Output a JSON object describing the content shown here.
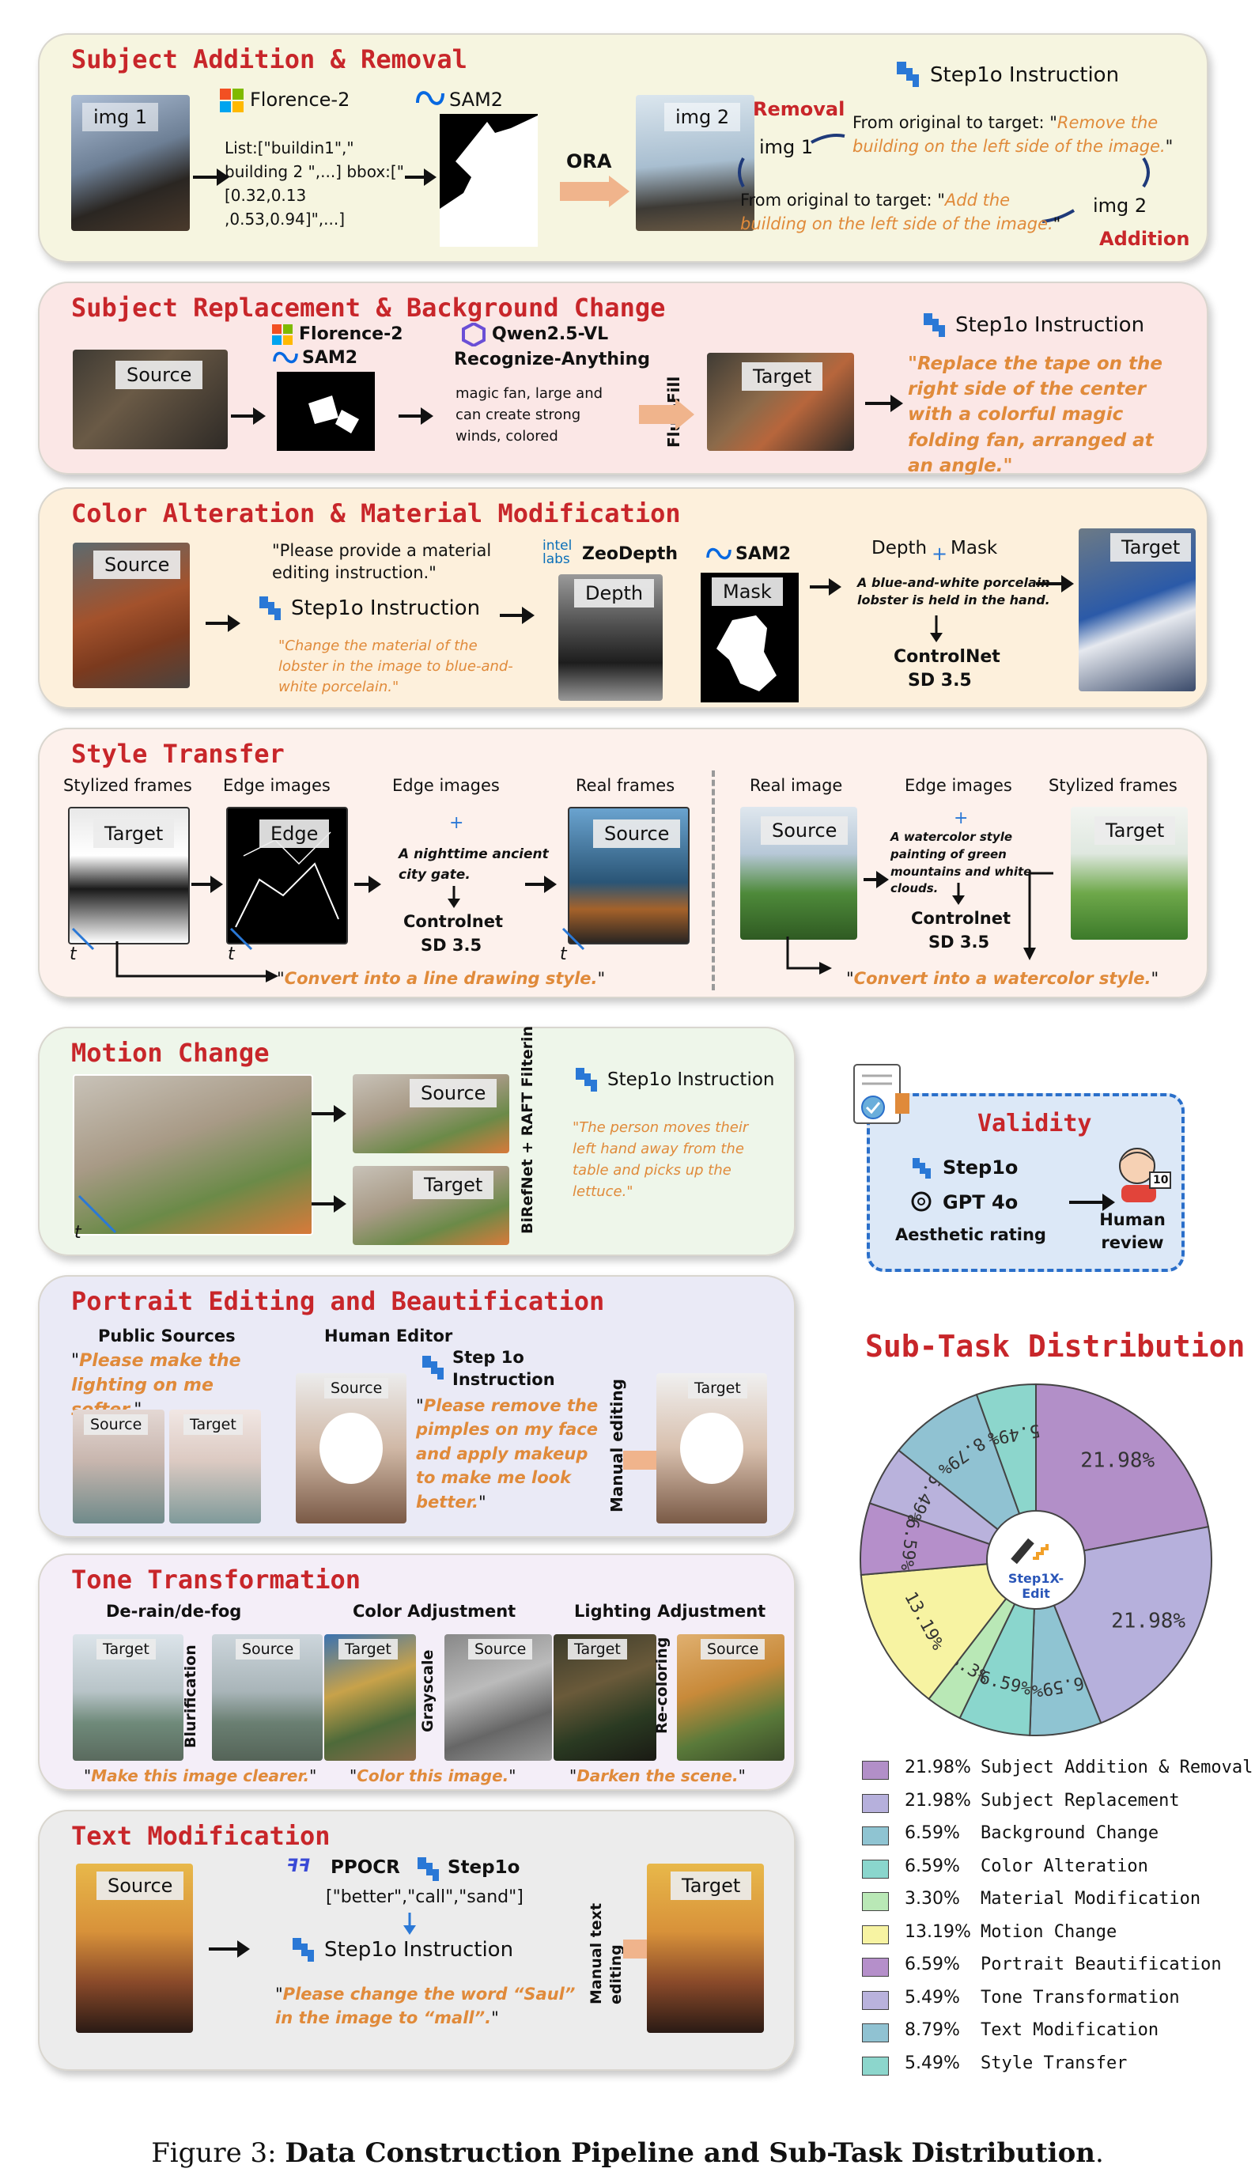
{
  "panels": {
    "addition": {
      "title": "Subject Addition & Removal",
      "img1": "img 1",
      "img2": "img 2",
      "florence": "Florence-2",
      "sam": "SAM2",
      "list_text": "List:[\"buildin1\",\" building 2 \",...] bbox:[\"[0.32,0.13 ,0.53,0.94]\",...]",
      "ora": "ORA",
      "step_instr": "Step1o Instruction",
      "removal": "Removal",
      "addition": "Addition",
      "img1_small": "img 1",
      "img2_small": "img 2",
      "remove_prefix": "From original to target: \"",
      "remove_text": "Remove the building on the left side of the image.",
      "add_prefix": "From original to target: \"",
      "add_text": "Add the building on the left side of the image."
    },
    "replacement": {
      "title": "Subject Replacement & Background Change",
      "source": "Source",
      "target": "Target",
      "florence": "Florence-2",
      "sam": "SAM2",
      "qwen": "Qwen2.5-VL",
      "recognize": "Recognize-Anything",
      "tags": "magic fan, large and can create strong winds, colored",
      "fluxfill": "Flux-Fill",
      "step_instr": "Step1o Instruction",
      "instr_text": "Replace the tape on the right side of the center with a colorful magic folding fan, arranged at an angle."
    },
    "color": {
      "title": "Color Alteration & Material Modification",
      "source": "Source",
      "target": "Target",
      "prompt": "\"Please provide a material editing instruction.\"",
      "step_instr": "Step1o Instruction",
      "instr_text": "Change the material of the lobster in the image to blue-and-white porcelain.",
      "zeodepth": "ZeoDepth",
      "intel1": "intel",
      "intel2": "labs",
      "depth": "Depth",
      "sam": "SAM2",
      "mask": "Mask",
      "depth_mask": "Depth",
      "plus": "+",
      "mask_word": "Mask",
      "caption": "A blue-and-white porcelain lobster is held in the hand.",
      "controlnet": "ControlNet",
      "sd": "SD 3.5"
    },
    "style": {
      "title": "Style Transfer",
      "col1": "Stylized frames",
      "col2": "Edge images",
      "col3": "Edge images",
      "col4": "Real frames",
      "col5": "Real image",
      "col6": "Edge images",
      "col7": "Stylized frames",
      "target": "Target",
      "edge": "Edge",
      "source": "Source",
      "source2": "Source",
      "target2": "Target",
      "t": "t",
      "plus": "+",
      "left_caption": "A nighttime ancient city gate.",
      "right_caption": "A watercolor style painting of green mountains and white clouds.",
      "controlnet": "Controlnet",
      "sd": "SD 3.5",
      "left_instr": "Convert into a line drawing style.",
      "right_instr": "Convert into a watercolor style."
    },
    "motion": {
      "title": "Motion Change",
      "source": "Source",
      "target": "Target",
      "t": "t",
      "filter": "BiRefNet + RAFT Filtering",
      "step_instr": "Step1o Instruction",
      "instr_text": "The person moves their left hand away from the table and picks up the lettuce."
    },
    "validity": {
      "title": "Validity",
      "step": "Step1o",
      "gpt": "GPT 4o",
      "aesthetic": "Aesthetic rating",
      "human": "Human review",
      "score": "10"
    },
    "portrait": {
      "title": "Portrait Editing and Beautification",
      "public": "Public Sources",
      "human_editor": "Human Editor",
      "public_instr": "Please make the lighting on me softer.",
      "source": "Source",
      "target": "Target",
      "step_instr": "Step 1o Instruction",
      "instr_text": "Please remove the pimples on my face and apply makeup to make me look better.",
      "manual": "Manual editing"
    },
    "tone": {
      "title": "Tone Transformation",
      "col1": "De-rain/de-fog",
      "col2": "Color Adjustment",
      "col3": "Lighting Adjustment",
      "target": "Target",
      "source": "Source",
      "op1": "Blurification",
      "op2": "Grayscale",
      "op3": "Re-coloring",
      "instr1": "Make this image clearer.",
      "instr2": "Color this image.",
      "instr3": "Darken the scene."
    },
    "text": {
      "title": "Text Modification",
      "source": "Source",
      "target": "Target",
      "ppocr": "PPOCR",
      "step": "Step1o",
      "words": "[\"better\",\"call\",\"sand\"]",
      "step_instr": "Step1o Instruction",
      "instr_text": "Please change the word “Saul” in the image to “mall”.",
      "manual": "Manual text editing"
    }
  },
  "distribution": {
    "title": "Sub-Task Distribution",
    "center_logo": "Step1X-Edit"
  },
  "chart_data": {
    "type": "pie",
    "title": "Sub-Task Distribution",
    "slices": [
      {
        "name": "Subject Addition & Removal",
        "value": 21.98,
        "label": "21.98%",
        "color": "#b28fc8"
      },
      {
        "name": "Subject Replacement",
        "value": 21.98,
        "label": "21.98%",
        "color": "#b6b0dc"
      },
      {
        "name": "Background Change",
        "value": 6.59,
        "label": "6.59%",
        "color": "#8fc4d2"
      },
      {
        "name": "Color Alteration",
        "value": 6.59,
        "label": "6.59%",
        "color": "#8ad6cd"
      },
      {
        "name": "Material Modification",
        "value": 3.3,
        "label": "3.3%",
        "color": "#b9e8b6"
      },
      {
        "name": "Motion Change",
        "value": 13.19,
        "label": "13.19%",
        "color": "#f7f3a2"
      },
      {
        "name": "Portrait Beautification",
        "value": 6.59,
        "label": "6.59%",
        "color": "#b58fca"
      },
      {
        "name": "Tone Transformation",
        "value": 5.49,
        "label": "5.49%",
        "color": "#b9b2dc"
      },
      {
        "name": "Text Modification",
        "value": 8.79,
        "label": "8.79%",
        "color": "#90c2d2"
      },
      {
        "name": "Style Transfer",
        "value": 5.49,
        "label": "5.49%",
        "color": "#8cd6cc"
      }
    ],
    "legend": [
      {
        "pct": "21.98%",
        "name": "Subject Addition & Removal",
        "color": "#b28fc8"
      },
      {
        "pct": "21.98%",
        "name": "Subject Replacement",
        "color": "#b6b0dc"
      },
      {
        "pct": "6.59%",
        "name": "Background Change",
        "color": "#8fc4d2"
      },
      {
        "pct": "6.59%",
        "name": "Color Alteration",
        "color": "#8ad6cd"
      },
      {
        "pct": "3.30%",
        "name": "Material Modification",
        "color": "#b9e8b6"
      },
      {
        "pct": "13.19%",
        "name": "Motion Change",
        "color": "#f7f3a2"
      },
      {
        "pct": "6.59%",
        "name": "Portrait Beautification",
        "color": "#b58fca"
      },
      {
        "pct": "5.49%",
        "name": "Tone Transformation",
        "color": "#b9b2dc"
      },
      {
        "pct": "8.79%",
        "name": "Text Modification",
        "color": "#90c2d2"
      },
      {
        "pct": "5.49%",
        "name": "Style Transfer",
        "color": "#8cd6cc"
      }
    ]
  },
  "caption": {
    "prefix": "Figure 3: ",
    "bold": "Data Construction Pipeline and Sub-Task Distribution",
    "suffix": "."
  }
}
